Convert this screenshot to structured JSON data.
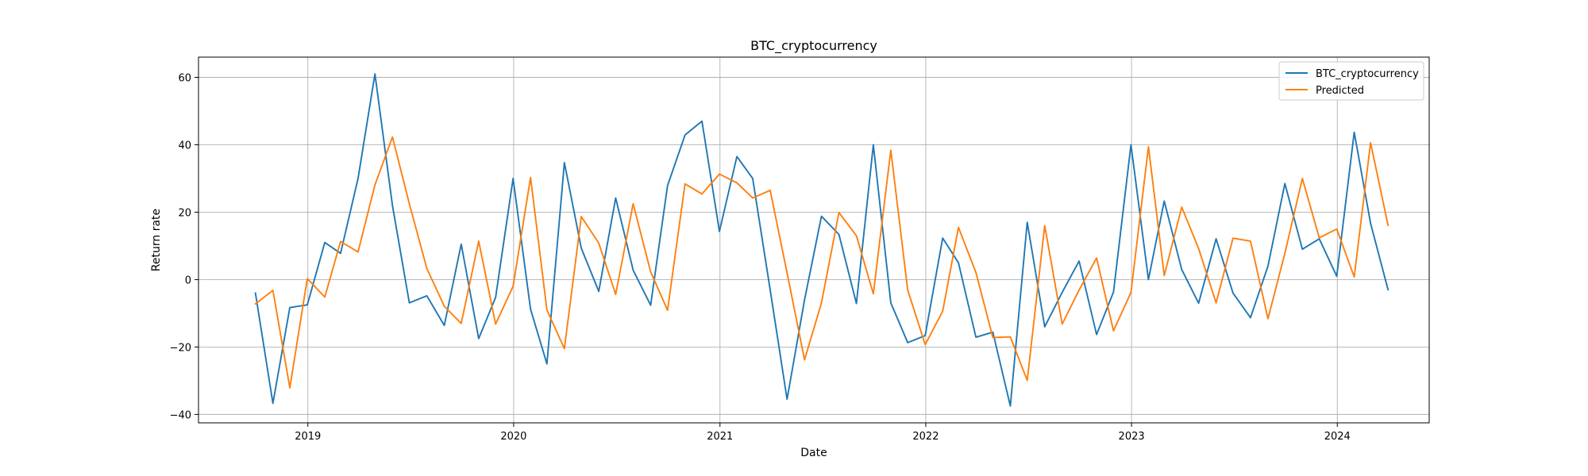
{
  "chart_data": {
    "type": "line",
    "title": "BTC_cryptocurrency",
    "xlabel": "Date",
    "ylabel": "Return rate",
    "x_type": "date",
    "xlim": [
      "2018-06-21",
      "2024-06-12"
    ],
    "ylim": [
      -42.5,
      66.0
    ],
    "grid": true,
    "legend_position": "top-right",
    "x_ticks": [
      {
        "date": "2019-01-01",
        "label": "2019"
      },
      {
        "date": "2020-01-01",
        "label": "2020"
      },
      {
        "date": "2021-01-01",
        "label": "2021"
      },
      {
        "date": "2022-01-01",
        "label": "2022"
      },
      {
        "date": "2023-01-01",
        "label": "2023"
      },
      {
        "date": "2024-01-01",
        "label": "2024"
      }
    ],
    "y_ticks": [
      {
        "value": -40,
        "label": "−40"
      },
      {
        "value": -20,
        "label": "−20"
      },
      {
        "value": 0,
        "label": "0"
      },
      {
        "value": 20,
        "label": "20"
      },
      {
        "value": 40,
        "label": "40"
      },
      {
        "value": 60,
        "label": "60"
      }
    ],
    "x": [
      "2018-09-30",
      "2018-10-31",
      "2018-11-30",
      "2018-12-31",
      "2019-01-31",
      "2019-02-28",
      "2019-03-31",
      "2019-04-30",
      "2019-05-31",
      "2019-06-30",
      "2019-07-31",
      "2019-08-31",
      "2019-09-30",
      "2019-10-31",
      "2019-11-30",
      "2019-12-31",
      "2020-01-31",
      "2020-02-29",
      "2020-03-31",
      "2020-04-30",
      "2020-05-31",
      "2020-06-30",
      "2020-07-31",
      "2020-08-31",
      "2020-09-30",
      "2020-10-31",
      "2020-11-30",
      "2020-12-31",
      "2021-01-31",
      "2021-02-28",
      "2021-03-31",
      "2021-04-30",
      "2021-05-31",
      "2021-06-30",
      "2021-07-31",
      "2021-08-31",
      "2021-09-30",
      "2021-10-31",
      "2021-11-30",
      "2021-12-31",
      "2022-01-31",
      "2022-02-28",
      "2022-03-31",
      "2022-04-30",
      "2022-05-31",
      "2022-06-30",
      "2022-07-31",
      "2022-08-31",
      "2022-09-30",
      "2022-10-31",
      "2022-11-30",
      "2022-12-31",
      "2023-01-31",
      "2023-02-28",
      "2023-03-31",
      "2023-04-30",
      "2023-05-31",
      "2023-06-30",
      "2023-07-31",
      "2023-08-31",
      "2023-09-30",
      "2023-10-31",
      "2023-11-30",
      "2023-12-31",
      "2024-01-31",
      "2024-02-29",
      "2024-03-31"
    ],
    "series": [
      {
        "name": "BTC_cryptocurrency",
        "color": "#1f77b4",
        "values": [
          -4.0,
          -36.7,
          -8.3,
          -7.5,
          11.0,
          7.8,
          30.0,
          61.0,
          22.0,
          -6.9,
          -4.8,
          -13.6,
          10.5,
          -17.5,
          -5.3,
          30.0,
          -8.8,
          -25.0,
          34.7,
          9.3,
          -3.5,
          24.2,
          2.8,
          -7.6,
          27.9,
          42.9,
          47.0,
          14.3,
          36.5,
          30.0,
          -3.0,
          -35.5,
          -6.0,
          18.8,
          13.4,
          -7.1,
          40.0,
          -6.9,
          -18.7,
          -16.6,
          12.3,
          5.0,
          -17.1,
          -15.6,
          -37.5,
          17.0,
          -14.0,
          -3.8,
          5.5,
          -16.3,
          -3.7,
          40.0,
          0.0,
          23.3,
          3.0,
          -7.0,
          12.1,
          -4.0,
          -11.3,
          4.0,
          28.5,
          9.0,
          12.1,
          1.0,
          43.7,
          16.7,
          -3.0
        ]
      },
      {
        "name": "Predicted",
        "color": "#ff7f0e",
        "values": [
          -7.2,
          -3.2,
          -32.1,
          0.3,
          -5.2,
          11.3,
          8.2,
          28.1,
          42.3,
          22.5,
          3.3,
          -7.9,
          -13.0,
          11.4,
          -13.2,
          -2.0,
          30.3,
          -9.0,
          -20.5,
          18.7,
          10.8,
          -4.4,
          22.5,
          2.3,
          -9.1,
          28.4,
          25.4,
          31.3,
          28.7,
          24.2,
          26.5,
          2.0,
          -23.8,
          -6.9,
          19.9,
          13.0,
          -4.2,
          38.4,
          -3.1,
          -19.3,
          -9.4,
          15.5,
          2.1,
          -17.2,
          -17.0,
          -29.9,
          16.0,
          -13.2,
          -3.1,
          6.4,
          -15.2,
          -3.8,
          39.4,
          1.2,
          21.5,
          9.2,
          -6.9,
          12.3,
          11.4,
          -11.6,
          7.8,
          30.0,
          12.4,
          15.0,
          0.8,
          40.6,
          16.1
        ]
      }
    ]
  }
}
